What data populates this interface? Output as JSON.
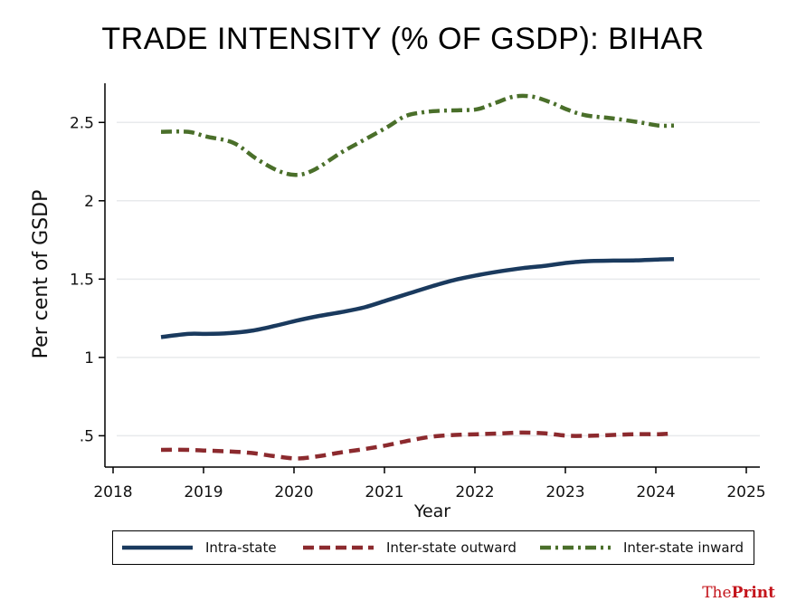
{
  "brand": {
    "the": "The",
    "print": "Print"
  },
  "chart_data": {
    "type": "line",
    "title": "TRADE INTENSITY (% OF GSDP): BIHAR",
    "xlabel": "Year",
    "ylabel": "Per cent of GSDP",
    "xlim": [
      2018,
      2025
    ],
    "ylim": [
      0.3,
      2.75
    ],
    "xticks": [
      2018,
      2019,
      2020,
      2021,
      2022,
      2023,
      2024,
      2025
    ],
    "yticks": [
      0.5,
      1,
      1.5,
      2,
      2.5
    ],
    "ytick_labels": [
      ".5",
      "1",
      "1.5",
      "2",
      "2.5"
    ],
    "grid": true,
    "legend_position": "bottom",
    "series": [
      {
        "name": "Intra-state",
        "color": "#1a3a5e",
        "dash": "solid",
        "x": [
          2018.5,
          2018.8,
          2019.0,
          2019.25,
          2019.5,
          2019.75,
          2020.0,
          2020.25,
          2020.5,
          2020.75,
          2021.0,
          2021.25,
          2021.5,
          2021.75,
          2022.0,
          2022.25,
          2022.5,
          2022.75,
          2023.0,
          2023.25,
          2023.5,
          2023.75,
          2024.0,
          2024.17
        ],
        "y": [
          1.13,
          1.15,
          1.15,
          1.155,
          1.17,
          1.2,
          1.235,
          1.265,
          1.29,
          1.32,
          1.365,
          1.41,
          1.455,
          1.495,
          1.525,
          1.55,
          1.57,
          1.585,
          1.605,
          1.615,
          1.618,
          1.62,
          1.625,
          1.628
        ]
      },
      {
        "name": "Inter-state outward",
        "color": "#8c2a2e",
        "dash": "dashed",
        "x": [
          2018.5,
          2018.8,
          2019.0,
          2019.25,
          2019.5,
          2019.75,
          2020.0,
          2020.25,
          2020.5,
          2020.75,
          2021.0,
          2021.25,
          2021.5,
          2021.75,
          2022.0,
          2022.25,
          2022.5,
          2022.75,
          2023.0,
          2023.25,
          2023.5,
          2023.75,
          2024.0,
          2024.17
        ],
        "y": [
          0.41,
          0.41,
          0.405,
          0.4,
          0.39,
          0.37,
          0.355,
          0.37,
          0.395,
          0.415,
          0.44,
          0.47,
          0.495,
          0.505,
          0.51,
          0.515,
          0.52,
          0.515,
          0.5,
          0.5,
          0.505,
          0.51,
          0.51,
          0.515
        ]
      },
      {
        "name": "Inter-state inward",
        "color": "#4a6f2a",
        "dash": "dashdot",
        "x": [
          2018.5,
          2018.8,
          2019.0,
          2019.3,
          2019.55,
          2019.8,
          2020.0,
          2020.2,
          2020.5,
          2020.75,
          2021.0,
          2021.2,
          2021.4,
          2021.6,
          2021.8,
          2022.0,
          2022.2,
          2022.4,
          2022.6,
          2022.8,
          2023.0,
          2023.2,
          2023.5,
          2023.8,
          2024.0,
          2024.17
        ],
        "y": [
          2.44,
          2.44,
          2.41,
          2.37,
          2.27,
          2.19,
          2.165,
          2.2,
          2.31,
          2.39,
          2.47,
          2.54,
          2.565,
          2.575,
          2.578,
          2.585,
          2.625,
          2.665,
          2.665,
          2.63,
          2.58,
          2.545,
          2.525,
          2.5,
          2.48,
          2.48
        ]
      }
    ]
  }
}
